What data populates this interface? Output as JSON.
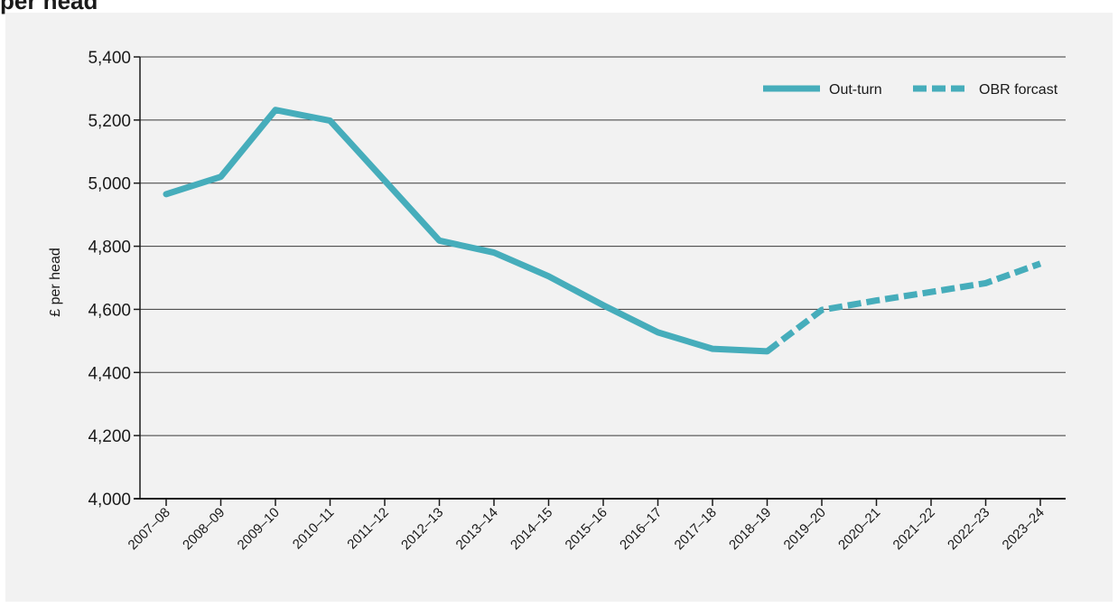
{
  "figure": {
    "title_fragment": "per head"
  },
  "chart_data": {
    "type": "line",
    "title": "",
    "xlabel": "",
    "ylabel": "£ per head",
    "ylim": [
      4000,
      5400
    ],
    "yticks": [
      4000,
      4200,
      4400,
      4600,
      4800,
      5000,
      5200,
      5400
    ],
    "ytick_labels": [
      "4,000",
      "4,200",
      "4,400",
      "4,600",
      "4,800",
      "5,000",
      "5,200",
      "5,400"
    ],
    "categories": [
      "2007–08",
      "2008–09",
      "2009–10",
      "2010–11",
      "2011–12",
      "2012–13",
      "2013–14",
      "2014–15",
      "2015–16",
      "2016–17",
      "2017–18",
      "2018–19",
      "2019–20",
      "2020–21",
      "2021–22",
      "2022–23",
      "2023–24"
    ],
    "grid": "horizontal",
    "legend_position": "top-right",
    "series": [
      {
        "name": "Out-turn",
        "style": "solid",
        "color": "#46adbb",
        "values": [
          4965,
          5020,
          5232,
          5198,
          5008,
          4818,
          4780,
          4705,
          4613,
          4527,
          4475,
          4467,
          null,
          null,
          null,
          null,
          null
        ]
      },
      {
        "name": "OBR forcast",
        "style": "dashed",
        "color": "#46adbb",
        "values": [
          null,
          null,
          null,
          null,
          null,
          null,
          null,
          null,
          null,
          null,
          null,
          4467,
          4598,
          4628,
          4655,
          4683,
          4745
        ]
      }
    ]
  }
}
